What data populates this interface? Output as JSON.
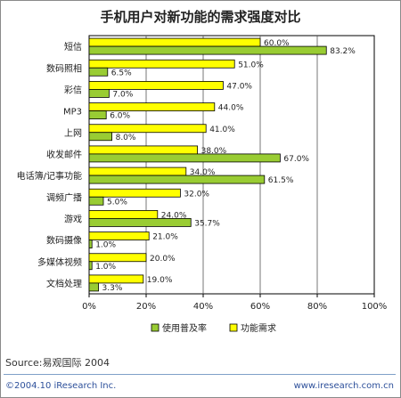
{
  "chart_data": {
    "type": "bar",
    "orientation": "horizontal",
    "title": "手机用户对新功能的需求强度对比",
    "categories": [
      "短信",
      "数码照相",
      "彩信",
      "MP3",
      "上网",
      "收发邮件",
      "电话簿/记事功能",
      "调频广播",
      "游戏",
      "数码摄像",
      "多媒体视频",
      "文档处理"
    ],
    "series": [
      {
        "name": "功能需求",
        "color": "#ffff00",
        "values": [
          60.0,
          51.0,
          47.0,
          44.0,
          41.0,
          38.0,
          34.0,
          32.0,
          24.0,
          21.0,
          20.0,
          19.0
        ]
      },
      {
        "name": "使用普及率",
        "color": "#99cc33",
        "values": [
          83.2,
          6.5,
          7.0,
          6.0,
          8.0,
          67.0,
          61.5,
          5.0,
          35.7,
          1.0,
          1.0,
          3.3
        ]
      }
    ],
    "value_labels": {
      "demand": [
        "60.0%",
        "51.0%",
        "47.0%",
        "44.0%",
        "41.0%",
        "38.0%",
        "34.0%",
        "32.0%",
        "24.0%",
        "21.0%",
        "20.0%",
        "19.0%"
      ],
      "usage": [
        "83.2%",
        "6.5%",
        "7.0%",
        "6.0%",
        "8.0%",
        "67.0%",
        "61.5%",
        "5.0%",
        "35.7%",
        "1.0%",
        "1.0%",
        "3.3%"
      ]
    },
    "xlim": [
      0,
      100
    ],
    "x_ticks": [
      "0%",
      "20%",
      "40%",
      "60%",
      "80%",
      "100%"
    ],
    "grid": true,
    "legend": [
      "使用普及率",
      "功能需求"
    ],
    "legend_placement": "bottom"
  },
  "source_text": "Source:易观国际 2004",
  "footer": {
    "left": "©2004.10 iResearch Inc.",
    "right": "www.iresearch.com.cn"
  }
}
